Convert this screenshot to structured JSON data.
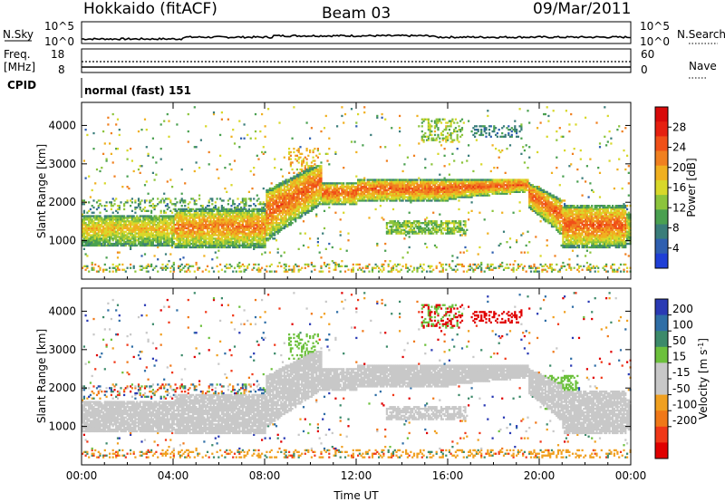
{
  "header": {
    "station": "Hokkaido (fitACF)",
    "beam": "Beam 03",
    "date": "09/Mar/2011"
  },
  "strips": {
    "nsky_label": "N.Sky",
    "nsky_top": "10^5",
    "nsky_bottom": "10^0",
    "nsearch_label": "N.Search",
    "nsearch_top": "10^5",
    "nsearch_bottom": "10^0",
    "freq_label_1": "Freq.",
    "freq_label_2": "[MHz]",
    "freq_top": "18",
    "freq_bottom": "8",
    "nave_label": "Nave",
    "nave_top": "60",
    "nave_bottom": "0",
    "cpid_label": "CPID",
    "cpid_text": "normal (fast) 151"
  },
  "colors": {
    "power": [
      "#1f3fd6",
      "#2f5fb0",
      "#3a7d7a",
      "#4aa050",
      "#8cc43c",
      "#d8d82a",
      "#f0b020",
      "#f08020",
      "#f05018",
      "#e62010",
      "#d80a0a"
    ],
    "velocity": [
      "#2a3ab4",
      "#2f6ea6",
      "#3c8a6a",
      "#6cc03c",
      "#c8c8c8",
      "#c8c8c8",
      "#f0a020",
      "#f07818",
      "#f03818",
      "#e00000"
    ]
  },
  "chart_data": [
    {
      "type": "heatmap",
      "title": "Power",
      "ylabel": "Slant Range [km]",
      "ylim": [
        0,
        4600
      ],
      "xlim": [
        "00:00",
        "24:00"
      ],
      "colorbar_label": "Power [dB]",
      "colorbar_ticks": [
        "4",
        "8",
        "12",
        "16",
        "20",
        "24",
        "28"
      ],
      "colorbar_range": [
        0,
        32
      ],
      "yticks": [
        "1000",
        "2000",
        "3000",
        "4000"
      ],
      "xticks": [
        "00:00",
        "04:00",
        "08:00",
        "12:00",
        "16:00",
        "20:00",
        "00:00"
      ]
    },
    {
      "type": "heatmap",
      "title": "Velocity",
      "ylabel": "Slant Range [km]",
      "xlabel": "Time UT",
      "ylim": [
        0,
        4600
      ],
      "xlim": [
        "00:00",
        "24:00"
      ],
      "colorbar_label": "Velocity [m s",
      "colorbar_label_sup": "-1",
      "colorbar_label_end": "]",
      "colorbar_ticks": [
        "200",
        "100",
        "50",
        "15",
        "-15",
        "-50",
        "-100",
        "-200"
      ],
      "yticks": [
        "1000",
        "2000",
        "3000",
        "4000"
      ],
      "xticks": [
        "00:00",
        "04:00",
        "08:00",
        "12:00",
        "16:00",
        "20:00",
        "00:00"
      ]
    }
  ]
}
